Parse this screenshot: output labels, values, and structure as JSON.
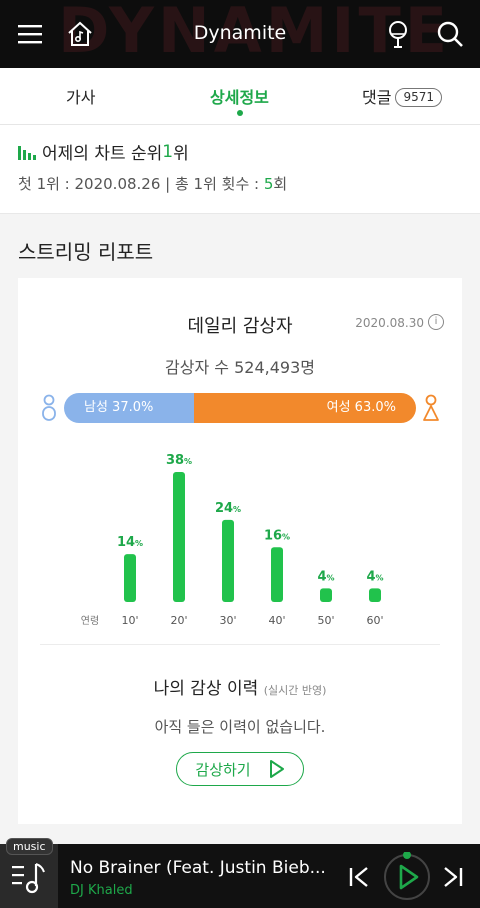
{
  "header": {
    "title": "Dynamite",
    "bg_text": "DYNAMITE"
  },
  "tabs": [
    {
      "label": "가사"
    },
    {
      "label": "상세정보"
    },
    {
      "label": "댓글",
      "count": "9571"
    }
  ],
  "chart_rank": {
    "line1_prefix": "어제의 차트 순위 ",
    "rank": "1",
    "line1_suffix": "위",
    "first_prefix": "첫 1위 : 2020.08.26 | 총 1위 횟수 : ",
    "count": "5",
    "count_suffix": "회"
  },
  "report": {
    "title": "스트리밍 리포트",
    "daily_title": "데일리 감상자",
    "date": "2020.08.30",
    "listeners": "감상자 수 524,493명",
    "male_label": "남성 37.0%",
    "female_label": "여성 63.0%",
    "male_pct": 37.0,
    "female_pct": 63.0,
    "age_axis_label": "연령"
  },
  "chart_data": {
    "type": "bar",
    "categories": [
      "10'",
      "20'",
      "30'",
      "40'",
      "50'",
      "60'"
    ],
    "values": [
      14,
      38,
      24,
      16,
      4,
      4
    ],
    "unit": "%",
    "xlabel": "연령",
    "color": "#21c24c"
  },
  "history": {
    "title": "나의 감상 이력",
    "sub": "(실시간 반영)",
    "empty": "아직 들은 이력이 없습니다.",
    "button": "감상하기"
  },
  "player": {
    "tag": "music",
    "song": "No Brainer (Feat. Justin Bieb...",
    "artist": "DJ Khaled"
  },
  "colors": {
    "accent": "#1ea84a",
    "male": "#8ab3ea",
    "female": "#f2892c"
  }
}
